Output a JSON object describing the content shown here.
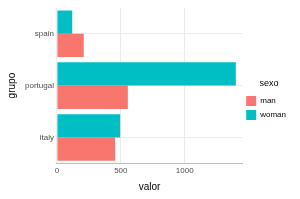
{
  "chart_data": {
    "type": "bar",
    "orientation": "horizontal",
    "categories": [
      "spain",
      "portugal",
      "italy"
    ],
    "series": [
      {
        "name": "man",
        "color": "#F8766D",
        "values": [
          210,
          555,
          455
        ]
      },
      {
        "name": "woman",
        "color": "#00BFC4",
        "values": [
          120,
          1400,
          495
        ]
      }
    ],
    "xlabel": "valor",
    "ylabel": "grupo",
    "legend_title": "sexo",
    "xlim": [
      0,
      1450
    ],
    "xticks": [
      0,
      500,
      1000
    ],
    "grid": true,
    "legend": "right"
  }
}
